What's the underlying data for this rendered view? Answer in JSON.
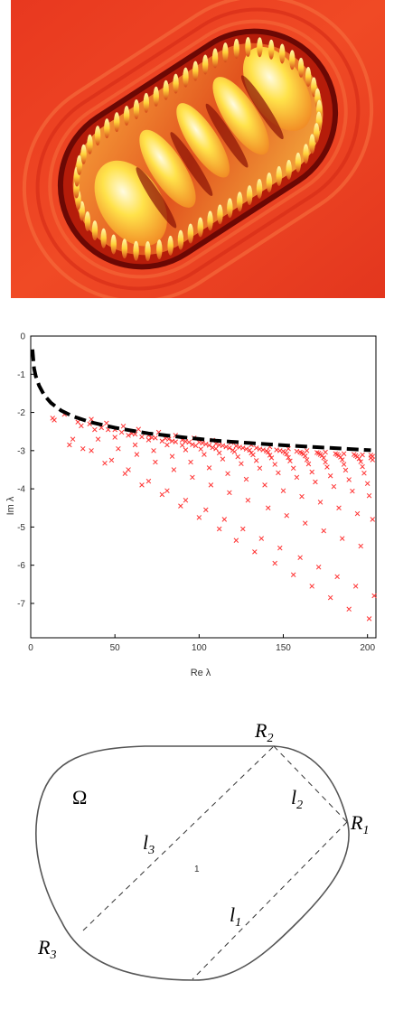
{
  "figure_top": {
    "colors": {
      "background": "#ec3a22",
      "ring_dark": "#7a0a04",
      "peak": "#ffe24a",
      "peak_light": "#fff7b0"
    }
  },
  "chart_data": {
    "type": "scatter",
    "xlabel": "Re λ",
    "ylabel": "Im λ",
    "xlim": [
      0,
      205
    ],
    "ylim": [
      -7.9,
      0
    ],
    "x_ticks": [
      0,
      50,
      100,
      150,
      200
    ],
    "x_tick_labels": [
      "0",
      "50",
      "100",
      "150",
      "200"
    ],
    "y_ticks": [
      0,
      -1,
      -2,
      -3,
      -4,
      -5,
      -6,
      -7
    ],
    "y_tick_labels": [
      "0",
      "-1",
      "-2",
      "-3",
      "-4",
      "-5",
      "-6",
      "-7"
    ],
    "grid": false,
    "marker_color": "#ff3333",
    "curve_color": "#000000",
    "curve": {
      "style": "dashed",
      "x": [
        1,
        2,
        3,
        5,
        8,
        12,
        18,
        25,
        35,
        50,
        70,
        90,
        110,
        130,
        150,
        170,
        190,
        202
      ],
      "y": [
        -0.35,
        -0.85,
        -1.05,
        -1.3,
        -1.55,
        -1.75,
        -1.95,
        -2.1,
        -2.25,
        -2.4,
        -2.55,
        -2.65,
        -2.74,
        -2.8,
        -2.86,
        -2.91,
        -2.96,
        -2.99
      ]
    },
    "series": [
      {
        "x": [
          13,
          23,
          31,
          44,
          56,
          66,
          78,
          89,
          100,
          112,
          122,
          133,
          145,
          156,
          167,
          178,
          189,
          201
        ],
        "y": [
          -2.15,
          -2.85,
          -2.95,
          -3.33,
          -3.6,
          -3.9,
          -4.15,
          -4.45,
          -4.75,
          -5.05,
          -5.35,
          -5.65,
          -5.95,
          -6.25,
          -6.55,
          -6.85,
          -7.15,
          -7.4
        ]
      },
      {
        "x": [
          14,
          25,
          36,
          48,
          58,
          70,
          81,
          92,
          104,
          115,
          126,
          137,
          148,
          160,
          171,
          182,
          193,
          204
        ],
        "y": [
          -2.2,
          -2.7,
          -3.0,
          -3.25,
          -3.5,
          -3.8,
          -4.05,
          -4.3,
          -4.55,
          -4.8,
          -5.05,
          -5.3,
          -5.55,
          -5.8,
          -6.05,
          -6.3,
          -6.55,
          -6.8
        ]
      },
      {
        "x": [
          20,
          30,
          40,
          52,
          63,
          74,
          85,
          96,
          107,
          118,
          129,
          141,
          152,
          163,
          174,
          185,
          196
        ],
        "y": [
          -2.05,
          -2.35,
          -2.7,
          -2.95,
          -3.1,
          -3.3,
          -3.5,
          -3.7,
          -3.9,
          -4.1,
          -4.3,
          -4.5,
          -4.7,
          -4.9,
          -5.1,
          -5.3,
          -5.5
        ]
      },
      {
        "x": [
          28,
          38,
          50,
          62,
          73,
          84,
          95,
          106,
          117,
          128,
          139,
          150,
          161,
          172,
          183,
          194,
          203
        ],
        "y": [
          -2.25,
          -2.45,
          -2.65,
          -2.85,
          -3.0,
          -3.15,
          -3.3,
          -3.45,
          -3.6,
          -3.75,
          -3.9,
          -4.05,
          -4.2,
          -4.35,
          -4.5,
          -4.65,
          -4.8
        ]
      },
      {
        "x": [
          35,
          46,
          58,
          70,
          81,
          92,
          103,
          114,
          125,
          136,
          147,
          158,
          169,
          180,
          191,
          201
        ],
        "y": [
          -2.3,
          -2.45,
          -2.6,
          -2.72,
          -2.85,
          -2.98,
          -3.1,
          -3.22,
          -3.34,
          -3.46,
          -3.58,
          -3.7,
          -3.82,
          -3.94,
          -4.06,
          -4.18
        ]
      },
      {
        "x": [
          42,
          54,
          66,
          78,
          90,
          101,
          112,
          123,
          134,
          145,
          156,
          167,
          178,
          189,
          200
        ],
        "y": [
          -2.4,
          -2.52,
          -2.64,
          -2.75,
          -2.86,
          -2.96,
          -3.06,
          -3.16,
          -3.26,
          -3.36,
          -3.46,
          -3.56,
          -3.66,
          -3.76,
          -3.86
        ]
      },
      {
        "x": [
          50,
          62,
          74,
          86,
          98,
          110,
          121,
          132,
          143,
          154,
          165,
          176,
          187,
          198
        ],
        "y": [
          -2.45,
          -2.57,
          -2.67,
          -2.77,
          -2.87,
          -2.95,
          -3.03,
          -3.11,
          -3.19,
          -3.27,
          -3.35,
          -3.43,
          -3.51,
          -3.59
        ]
      },
      {
        "x": [
          60,
          72,
          84,
          96,
          108,
          120,
          131,
          142,
          153,
          164,
          175,
          186,
          197
        ],
        "y": [
          -2.55,
          -2.66,
          -2.75,
          -2.84,
          -2.92,
          -2.99,
          -3.06,
          -3.12,
          -3.18,
          -3.24,
          -3.3,
          -3.36,
          -3.42
        ]
      },
      {
        "x": [
          70,
          82,
          94,
          106,
          118,
          130,
          141,
          152,
          163,
          174,
          185,
          196
        ],
        "y": [
          -2.6,
          -2.7,
          -2.78,
          -2.86,
          -2.93,
          -2.99,
          -3.04,
          -3.09,
          -3.14,
          -3.19,
          -3.24,
          -3.29
        ]
      },
      {
        "x": [
          80,
          92,
          104,
          116,
          128,
          140,
          151,
          162,
          173,
          184,
          195,
          203
        ],
        "y": [
          -2.68,
          -2.76,
          -2.83,
          -2.9,
          -2.96,
          -3.01,
          -3.05,
          -3.09,
          -3.13,
          -3.17,
          -3.21,
          -3.24
        ]
      },
      {
        "x": [
          90,
          102,
          114,
          126,
          138,
          150,
          161,
          172,
          183,
          194,
          202
        ],
        "y": [
          -2.72,
          -2.8,
          -2.87,
          -2.93,
          -2.98,
          -3.02,
          -3.06,
          -3.1,
          -3.13,
          -3.16,
          -3.19
        ]
      },
      {
        "x": [
          100,
          112,
          124,
          136,
          148,
          160,
          171,
          182,
          193,
          203
        ],
        "y": [
          -2.78,
          -2.85,
          -2.91,
          -2.96,
          -3.0,
          -3.04,
          -3.07,
          -3.1,
          -3.13,
          -3.15
        ]
      },
      {
        "x": [
          110,
          122,
          134,
          146,
          158,
          170,
          181,
          192,
          202
        ],
        "y": [
          -2.82,
          -2.88,
          -2.93,
          -2.98,
          -3.02,
          -3.05,
          -3.08,
          -3.1,
          -3.12
        ]
      },
      {
        "x": [
          36,
          45,
          55,
          64,
          76,
          86,
          97,
          108,
          119,
          131,
          142,
          153,
          164,
          175,
          186,
          197
        ],
        "y": [
          -2.18,
          -2.28,
          -2.36,
          -2.44,
          -2.52,
          -2.6,
          -2.67,
          -2.73,
          -2.79,
          -2.85,
          -2.9,
          -2.95,
          -3.0,
          -3.04,
          -3.08,
          -3.11
        ]
      }
    ]
  },
  "diagram": {
    "labels": {
      "omega": "Ω",
      "r1": "R",
      "r1_sub": "1",
      "r2": "R",
      "r2_sub": "2",
      "r3": "R",
      "r3_sub": "3",
      "l1": "l",
      "l1_sub": "1",
      "l2": "l",
      "l2_sub": "2",
      "l3": "l",
      "l3_sub": "3",
      "center": "1"
    }
  }
}
